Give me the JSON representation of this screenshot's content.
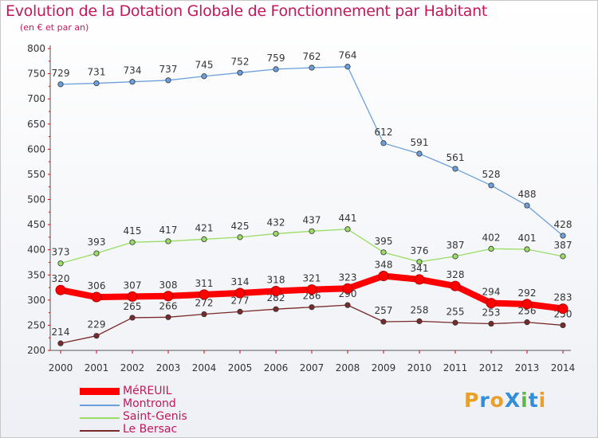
{
  "title": "Evolution de la Dotation Globale de Fonctionnement par Habitant",
  "subtitle": "(en € et par an)",
  "logo": {
    "text": "ProXiti",
    "colors": [
      "#e8a02a",
      "#2f8fd8",
      "#e8a02a",
      "#2f8fd8",
      "#5cb847",
      "#2f8fd8",
      "#e8a02a"
    ]
  },
  "chart_data": {
    "type": "line",
    "title": "Evolution de la Dotation Globale de Fonctionnement par Habitant",
    "subtitle": "(en € et par an)",
    "x": [
      2000,
      2001,
      2002,
      2003,
      2004,
      2005,
      2006,
      2007,
      2008,
      2009,
      2010,
      2011,
      2012,
      2013,
      2014
    ],
    "ylim": [
      200,
      800
    ],
    "yticks": [
      200,
      250,
      300,
      350,
      400,
      450,
      500,
      550,
      600,
      650,
      700,
      750,
      800
    ],
    "grid": false,
    "legend_position": "bottom-left",
    "series": [
      {
        "name": "MéREUIL",
        "color": "#ff0000",
        "emphasis": true,
        "values": [
          320,
          306,
          307,
          308,
          311,
          314,
          318,
          321,
          323,
          348,
          341,
          328,
          294,
          292,
          283
        ]
      },
      {
        "name": "Montrond",
        "color": "#6ca0dc",
        "emphasis": false,
        "values": [
          729,
          731,
          734,
          737,
          745,
          752,
          759,
          762,
          764,
          612,
          591,
          561,
          528,
          488,
          428
        ]
      },
      {
        "name": "Saint-Genis",
        "color": "#99dd66",
        "emphasis": false,
        "values": [
          373,
          393,
          415,
          417,
          421,
          425,
          432,
          437,
          441,
          395,
          376,
          387,
          402,
          401,
          387
        ]
      },
      {
        "name": "Le Bersac",
        "color": "#7a2a2a",
        "emphasis": false,
        "values": [
          214,
          229,
          265,
          266,
          272,
          277,
          282,
          286,
          290,
          257,
          258,
          255,
          253,
          256,
          250
        ]
      }
    ]
  }
}
